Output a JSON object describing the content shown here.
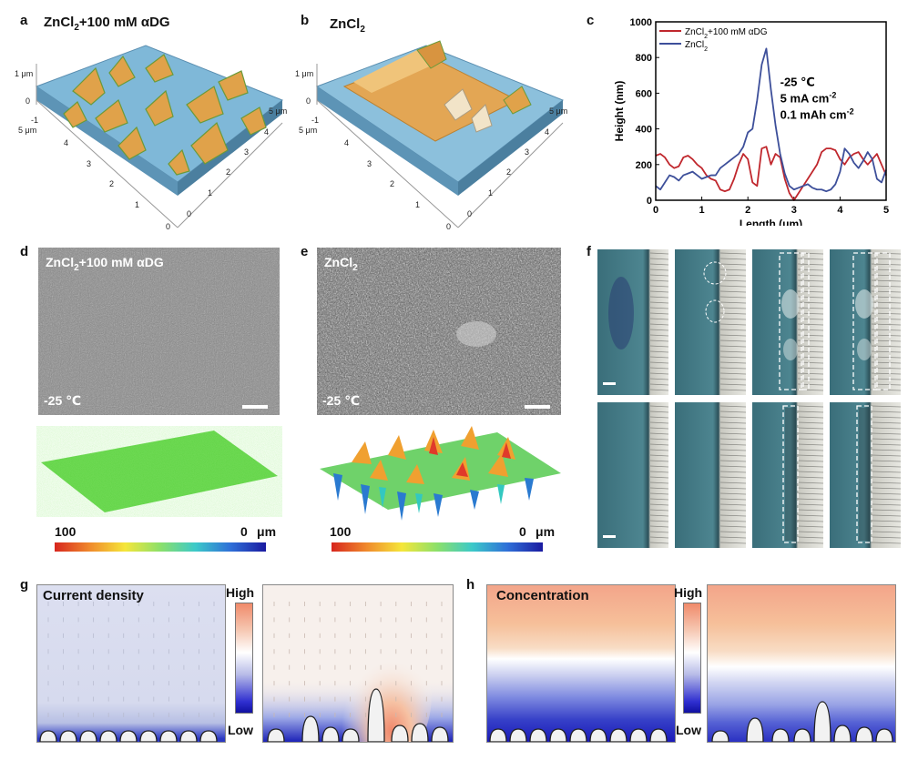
{
  "panels": {
    "a": {
      "label": "a",
      "title_main": "ZnCl",
      "title_sub": "2",
      "title_rest": "+100 mM αDG",
      "ticks_z": [
        "1 μm",
        "0",
        "-1"
      ],
      "ticks_left": [
        "5 μm",
        "4",
        "3",
        "2",
        "1",
        "0"
      ],
      "ticks_right": [
        "5 μm",
        "4",
        "3",
        "2",
        "1",
        "0"
      ]
    },
    "b": {
      "label": "b",
      "title_main": "ZnCl",
      "title_sub": "2",
      "ticks_z": [
        "1 μm",
        "0",
        "-1"
      ],
      "ticks_left": [
        "5 μm",
        "4",
        "3",
        "2",
        "1",
        "0"
      ],
      "ticks_right": [
        "5 μm",
        "4",
        "3",
        "2",
        "1",
        "0"
      ]
    },
    "c": {
      "label": "c"
    },
    "d": {
      "label": "d",
      "title_main": "ZnCl",
      "title_sub": "2",
      "title_rest": "+100 mM αDG",
      "temp": "-25 ℃",
      "cbar_left": "100",
      "cbar_right": "0",
      "cbar_unit": "μm"
    },
    "e": {
      "label": "e",
      "title_main": "ZnCl",
      "title_sub": "2",
      "temp": "-25 ℃",
      "cbar_left": "100",
      "cbar_right": "0",
      "cbar_unit": "μm"
    },
    "f": {
      "label": "f"
    },
    "g": {
      "label": "g",
      "title": "Current density",
      "high": "High",
      "low": "Low"
    },
    "h": {
      "label": "h",
      "title": "Concentration",
      "high": "High",
      "low": "Low"
    }
  },
  "chart_data": {
    "type": "line",
    "xlabel": "Length (μm)",
    "ylabel": "Height (nm)",
    "xlim": [
      0,
      5
    ],
    "ylim": [
      0,
      1000
    ],
    "xticks": [
      0,
      1,
      2,
      3,
      4,
      5
    ],
    "yticks": [
      0,
      200,
      400,
      600,
      800,
      1000
    ],
    "legend_position": "top-left",
    "annotations": [
      "-25 ℃",
      "5 mA cm",
      "0.1 mAh cm"
    ],
    "annotation_sup": [
      "",
      "-2",
      "-2"
    ],
    "series": [
      {
        "name_main": "ZnCl",
        "name_sub": "2",
        "name_rest": "+100 mM αDG",
        "color": "#c0272d",
        "x": [
          0,
          0.1,
          0.2,
          0.3,
          0.4,
          0.5,
          0.6,
          0.7,
          0.8,
          0.9,
          1.0,
          1.1,
          1.2,
          1.3,
          1.4,
          1.5,
          1.6,
          1.7,
          1.8,
          1.9,
          2.0,
          2.1,
          2.2,
          2.3,
          2.4,
          2.5,
          2.6,
          2.7,
          2.8,
          2.9,
          3.0,
          3.1,
          3.2,
          3.3,
          3.4,
          3.5,
          3.6,
          3.7,
          3.8,
          3.9,
          4.0,
          4.1,
          4.2,
          4.3,
          4.4,
          4.5,
          4.6,
          4.7,
          4.8,
          4.9,
          5.0
        ],
        "y": [
          250,
          260,
          240,
          200,
          180,
          190,
          240,
          250,
          230,
          200,
          180,
          140,
          120,
          110,
          60,
          50,
          60,
          120,
          200,
          260,
          230,
          100,
          80,
          290,
          300,
          200,
          260,
          240,
          120,
          40,
          0,
          40,
          80,
          120,
          160,
          200,
          270,
          290,
          290,
          280,
          230,
          200,
          240,
          260,
          270,
          230,
          200,
          230,
          260,
          200,
          140
        ]
      },
      {
        "name_main": "ZnCl",
        "name_sub": "2",
        "name_rest": "",
        "color": "#3d4f9a",
        "x": [
          0,
          0.1,
          0.2,
          0.3,
          0.4,
          0.5,
          0.6,
          0.7,
          0.8,
          0.9,
          1.0,
          1.1,
          1.2,
          1.3,
          1.4,
          1.5,
          1.6,
          1.7,
          1.8,
          1.9,
          2.0,
          2.1,
          2.2,
          2.3,
          2.4,
          2.5,
          2.6,
          2.7,
          2.8,
          2.9,
          3.0,
          3.1,
          3.2,
          3.3,
          3.4,
          3.5,
          3.6,
          3.7,
          3.8,
          3.9,
          4.0,
          4.1,
          4.2,
          4.3,
          4.4,
          4.5,
          4.6,
          4.7,
          4.8,
          4.9,
          5.0
        ],
        "y": [
          80,
          60,
          100,
          140,
          130,
          110,
          140,
          150,
          160,
          140,
          120,
          130,
          140,
          140,
          180,
          200,
          220,
          240,
          260,
          300,
          380,
          400,
          560,
          760,
          850,
          620,
          420,
          260,
          150,
          80,
          60,
          70,
          80,
          90,
          70,
          60,
          60,
          50,
          60,
          90,
          160,
          290,
          260,
          210,
          180,
          220,
          270,
          230,
          120,
          100,
          170
        ]
      }
    ]
  },
  "colors": {
    "red": "#c0272d",
    "blue": "#3d4f9a",
    "afm_blue": "#7fb8d8",
    "afm_gold": "#e0a24a",
    "afm_green": "#6a9a3a"
  }
}
